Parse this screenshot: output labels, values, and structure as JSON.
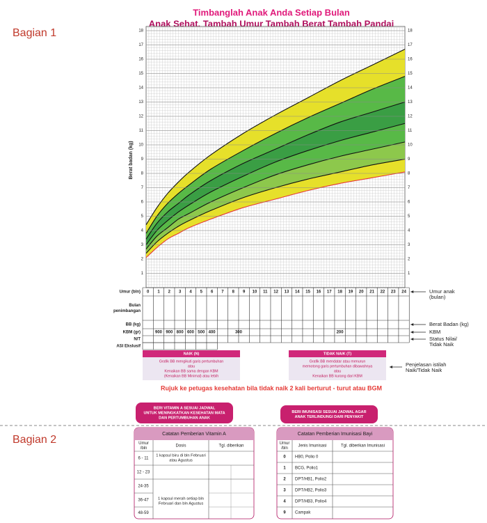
{
  "sections": {
    "part1": "Bagian 1",
    "part2": "Bagian 2"
  },
  "header": {
    "line1": "Timbanglah Anak Anda Setiap Bulan",
    "line2": "Anak Sehat, Tambah Umur  Tambah Berat  Tambah Pandai"
  },
  "growth_chart": {
    "y_label": "Berat badan (kg)",
    "yticks": [
      1,
      2,
      3,
      4,
      5,
      6,
      7,
      8,
      9,
      10,
      11,
      12,
      13,
      14,
      15,
      16,
      17,
      18
    ],
    "curve_months": [
      0,
      1,
      2,
      3,
      4,
      6,
      9,
      12,
      15,
      18,
      21,
      24
    ],
    "curves": [
      [
        4.4,
        5.6,
        6.6,
        7.4,
        8.1,
        9.3,
        10.8,
        12.1,
        13.3,
        14.5,
        15.6,
        16.7
      ],
      [
        3.8,
        5.0,
        5.9,
        6.6,
        7.2,
        8.3,
        9.6,
        10.8,
        11.9,
        12.9,
        13.9,
        14.8
      ],
      [
        3.4,
        4.5,
        5.3,
        5.9,
        6.5,
        7.5,
        8.7,
        9.7,
        10.7,
        11.6,
        12.3,
        13.0
      ],
      [
        3.0,
        4.0,
        4.7,
        5.3,
        5.8,
        6.7,
        7.8,
        8.8,
        9.6,
        10.3,
        10.9,
        11.5
      ],
      [
        2.7,
        3.6,
        4.2,
        4.8,
        5.2,
        6.0,
        7.0,
        7.9,
        8.6,
        9.2,
        9.7,
        10.2
      ],
      [
        2.4,
        3.2,
        3.8,
        4.3,
        4.7,
        5.4,
        6.3,
        7.0,
        7.6,
        8.1,
        8.6,
        9.0
      ],
      [
        2.1,
        2.8,
        3.4,
        3.8,
        4.2,
        4.8,
        5.6,
        6.2,
        6.8,
        7.3,
        7.7,
        8.1
      ]
    ]
  },
  "record_table": {
    "row_labels": [
      [
        "Umur (bln)"
      ],
      [
        "Bulan",
        "penimbangan"
      ],
      [
        "BB (kg)"
      ],
      [
        "KBM (gr)"
      ],
      [
        "N/T"
      ],
      [
        "ASI Ekslusif"
      ]
    ],
    "months": [
      0,
      1,
      2,
      3,
      4,
      5,
      6,
      7,
      8,
      9,
      10,
      11,
      12,
      13,
      14,
      15,
      16,
      17,
      18,
      19,
      20,
      21,
      22,
      23,
      24
    ],
    "kbm": [
      900,
      900,
      800,
      600,
      500,
      400,
      300,
      200
    ]
  },
  "annotations": [
    [
      "Umur anak",
      "(bulan)"
    ],
    [
      "Berat Badan (kg)"
    ],
    [
      "KBM"
    ],
    [
      "Status Nilai/",
      "Tidak Naik"
    ]
  ],
  "status_boxes": [
    {
      "title": "NAIK (N)",
      "lines": [
        "Grafik BB mengikuti garis pertumbuhan",
        "atau",
        "Kenaikan BB sama dengan KBM",
        "(Kenaikan BB Minimal) atau lebih"
      ]
    },
    {
      "title": "TIDAK NAIK (T)",
      "lines": [
        "Grafik BB mendatar atau menurun",
        "memotong garis pertumbuhan dibawahnya",
        "atau",
        "Kenaikan BB kurang dari KBM"
      ]
    }
  ],
  "status_note": [
    "Penjelasan istilah",
    "Naik/Tidak Naik"
  ],
  "referral": "Rujuk ke petugas kesehatan bila tidak naik 2 kali berturut - turut atau BGM",
  "banners": [
    [
      "BERI VITAMIN A SESUAI JADWAL",
      "UNTUK MENINGKATKAN KESEHATAN MATA",
      "DAN PERTUMBUHAN ANAK"
    ],
    [
      "BERI IMUNISASI SESUAI JADWAL AGAR",
      "ANAK TERLINDUNGI DARI PENYAKIT"
    ]
  ],
  "vitamin_table": {
    "title": "Catatan Pemberian Vitamin A",
    "headers": [
      [
        "Umur",
        "/bln"
      ],
      [
        "Dosis"
      ],
      [
        "Tgl. diberikan"
      ]
    ],
    "ages": [
      "6 - 11",
      "12 - 23",
      "24-35",
      "36-47",
      "48-59"
    ],
    "doses": [
      [
        "1 kapsul biru di bln Februari",
        "atau Agustus"
      ],
      [
        "1 kapsul merah setiap bln",
        "Februari dan bln Agustus"
      ]
    ]
  },
  "immunization_table": {
    "title": "Catatan Pemberian Imunisasi Bayi",
    "headers": [
      [
        "Umur",
        "/bln"
      ],
      [
        "Jenis Imunisasi"
      ],
      [
        "Tgl. diberikan Imunisasi"
      ]
    ],
    "rows": [
      [
        0,
        "HB0, Polio 0"
      ],
      [
        1,
        "BCG, Polio1"
      ],
      [
        2,
        "DPT/HB1, Polio2"
      ],
      [
        3,
        "DPT/HB2, Polio3"
      ],
      [
        4,
        "DPT/HB3, Polio4"
      ],
      [
        9,
        "Campak"
      ]
    ]
  }
}
